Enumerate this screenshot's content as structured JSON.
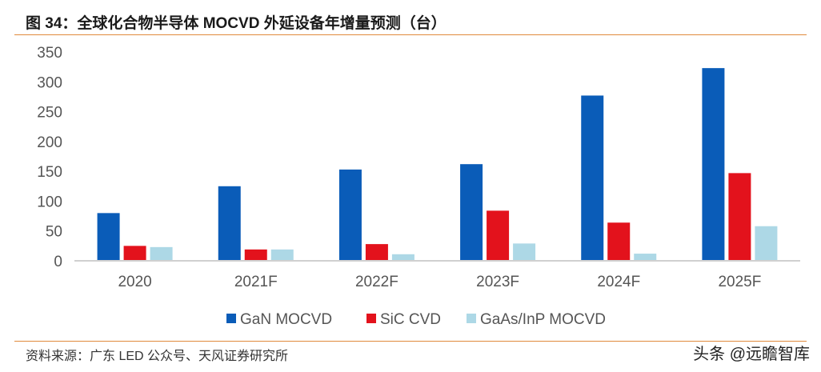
{
  "title": "图 34：全球化合物半导体 MOCVD 外延设备年增量预测（台）",
  "source": "资料来源：广东 LED 公众号、天风证券研究所",
  "watermark": "头条 @远瞻智库",
  "chart_data": {
    "type": "bar",
    "categories": [
      "2020",
      "2021F",
      "2022F",
      "2023F",
      "2024F",
      "2025F"
    ],
    "series": [
      {
        "name": "GaN MOCVD",
        "color": "#0a5cb8",
        "values": [
          80,
          125,
          153,
          162,
          277,
          323
        ]
      },
      {
        "name": "SiC CVD",
        "color": "#e3121c",
        "values": [
          25,
          19,
          28,
          84,
          64,
          147
        ]
      },
      {
        "name": "GaAs/InP MOCVD",
        "color": "#add8e6",
        "values": [
          23,
          19,
          11,
          29,
          12,
          58
        ]
      }
    ],
    "ylim": [
      0,
      350
    ],
    "yticks": [
      "0",
      "50",
      "100",
      "150",
      "200",
      "250",
      "300",
      "350"
    ],
    "grid": false,
    "legend": "bottom"
  }
}
